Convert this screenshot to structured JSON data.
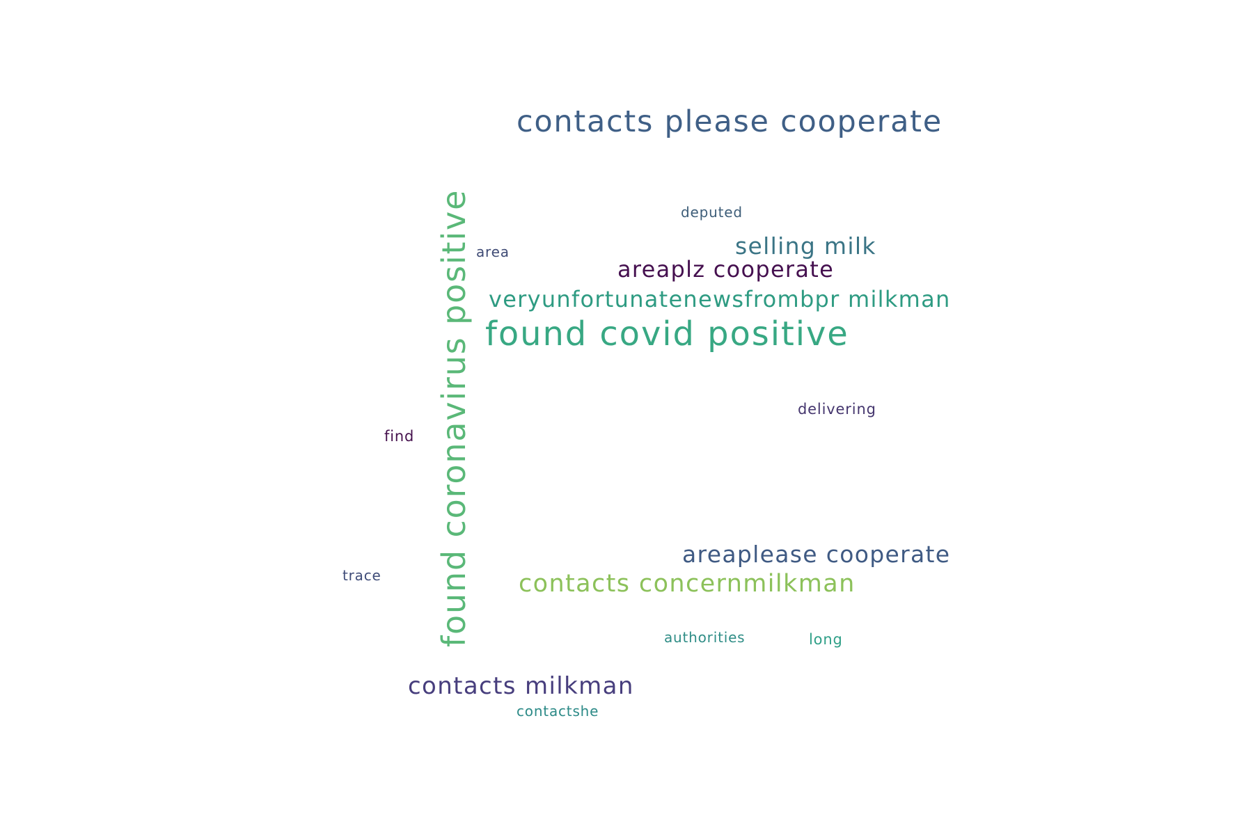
{
  "words": [
    {
      "text": "contacts please cooperate",
      "color": "#3f5f86"
    },
    {
      "text": "found coronavirus positive",
      "color": "#5ab878"
    },
    {
      "text": "deputed",
      "color": "#3d5d78"
    },
    {
      "text": "selling milk",
      "color": "#3a7485"
    },
    {
      "text": "area",
      "color": "#3f4b75"
    },
    {
      "text": "areaplz cooperate",
      "color": "#45104f"
    },
    {
      "text": "veryunfortunatenewsfrombpr milkman",
      "color": "#2e9b82"
    },
    {
      "text": "found covid positive",
      "color": "#38a883"
    },
    {
      "text": "delivering",
      "color": "#45366e"
    },
    {
      "text": "find",
      "color": "#46124e"
    },
    {
      "text": "areaplease cooperate",
      "color": "#3f5a83"
    },
    {
      "text": "trace",
      "color": "#3f4c78"
    },
    {
      "text": "contacts concernmilkman",
      "color": "#8cc15a"
    },
    {
      "text": "authorities",
      "color": "#2f8d86"
    },
    {
      "text": "long",
      "color": "#2f9f87"
    },
    {
      "text": "contacts milkman",
      "color": "#473e7d"
    },
    {
      "text": "contactshe",
      "color": "#2c8a87"
    }
  ]
}
